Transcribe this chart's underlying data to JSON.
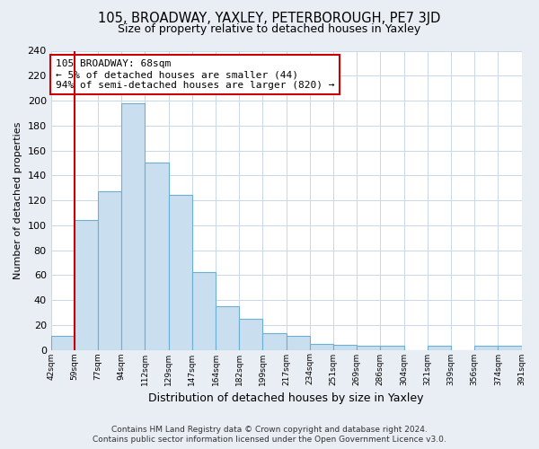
{
  "title": "105, BROADWAY, YAXLEY, PETERBOROUGH, PE7 3JD",
  "subtitle": "Size of property relative to detached houses in Yaxley",
  "xlabel": "Distribution of detached houses by size in Yaxley",
  "ylabel": "Number of detached properties",
  "bar_labels": [
    "42sqm",
    "59sqm",
    "77sqm",
    "94sqm",
    "112sqm",
    "129sqm",
    "147sqm",
    "164sqm",
    "182sqm",
    "199sqm",
    "217sqm",
    "234sqm",
    "251sqm",
    "269sqm",
    "286sqm",
    "304sqm",
    "321sqm",
    "339sqm",
    "356sqm",
    "374sqm",
    "391sqm"
  ],
  "bar_values": [
    11,
    104,
    127,
    198,
    150,
    124,
    62,
    35,
    25,
    13,
    11,
    5,
    4,
    3,
    3,
    0,
    3,
    0,
    3,
    3
  ],
  "bar_color": "#c9dff0",
  "bar_edge_color": "#6baed6",
  "ann_line1": "105 BROADWAY: 68sqm",
  "ann_line2": "← 5% of detached houses are smaller (44)",
  "ann_line3": "94% of semi-detached houses are larger (820) →",
  "annotation_box_edge": "#cc0000",
  "property_vline_color": "#cc0000",
  "ylim": [
    0,
    240
  ],
  "yticks": [
    0,
    20,
    40,
    60,
    80,
    100,
    120,
    140,
    160,
    180,
    200,
    220,
    240
  ],
  "footer_line1": "Contains HM Land Registry data © Crown copyright and database right 2024.",
  "footer_line2": "Contains public sector information licensed under the Open Government Licence v3.0.",
  "bg_color": "#e8eef4",
  "plot_bg_color": "#ffffff"
}
